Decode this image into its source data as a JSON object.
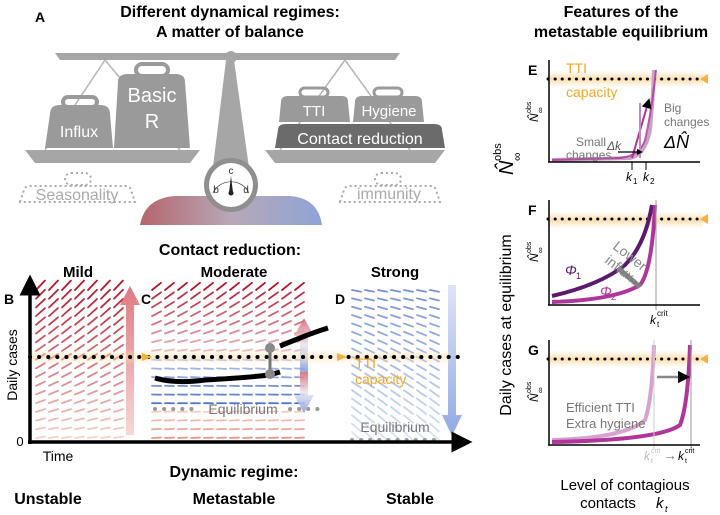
{
  "panel_a": {
    "letter": "A",
    "title_line1": "Different dynamical regimes:",
    "title_line2": "A matter of balance",
    "weights_left": {
      "influx": "Influx",
      "basic_r_line1": "Basic",
      "basic_r_line2": "R"
    },
    "weights_right": {
      "tti": "TTI",
      "hygiene": "Hygiene",
      "contact_reduction": "Contact reduction"
    },
    "dotted_left": "Seasonality",
    "dotted_right": "immunity",
    "gauge": {
      "b": "b",
      "c": "c",
      "d": "d"
    }
  },
  "middle": {
    "title": "Contact reduction:",
    "footer_title": "Dynamic regime:",
    "panels": [
      {
        "letter": "B",
        "label": "Mild",
        "regime": "Unstable"
      },
      {
        "letter": "C",
        "label": "Moderate",
        "regime": "Metastable"
      },
      {
        "letter": "D",
        "label": "Strong",
        "regime": "Stable"
      }
    ],
    "ylabel": "Daily cases",
    "xlabel": "Time",
    "zero": "0",
    "tti_line1": "TTI",
    "tti_line2": "capacity",
    "equilibrium": "Equilibrium"
  },
  "right": {
    "title_line1": "Features of the",
    "title_line2": "metastable equilibrium",
    "ylabel": "Daily cases at equilibrium",
    "y_math": "N̂",
    "y_sup": "obs",
    "y_sub": "∞",
    "xlabel_line1": "Level of contagious",
    "xlabel_line2": "contacts",
    "x_math": "k",
    "x_sub": "t",
    "panel_e": {
      "letter": "E",
      "tti_line1": "TTI",
      "tti_line2": "capacity",
      "small_changes_line1": "Small",
      "small_changes_line2": "changes",
      "delta_k": "Δk",
      "big_changes_line1": "Big",
      "big_changes_line2": "changes",
      "delta_n": "ΔN̂",
      "k1": "k",
      "k1_sub": "1",
      "k2": "k",
      "k2_sub": "2"
    },
    "panel_f": {
      "letter": "F",
      "phi1": "Φ",
      "phi1_sub": "1",
      "phi2": "Φ",
      "phi2_sub": "2",
      "lower_influx_line1": "Lower",
      "lower_influx_line2": "influx",
      "kcrit": "k",
      "kcrit_sub": "t",
      "kcrit_sup": "crit"
    },
    "panel_g": {
      "letter": "G",
      "efficient_tti": "Efficient TTI",
      "extra_hygiene": "Extra hygiene",
      "kcrit_prime": "k",
      "kcrit_prime_sub": "t",
      "kcrit_prime_sup": "crit",
      "kcrit": "k",
      "kcrit_sub": "t",
      "kcrit_sup": "crit",
      "arrow": "→"
    }
  },
  "colors": {
    "scale_gray": "#a6a6a6",
    "weight_gray": "#9a9a9a",
    "dark_weight": "#6b6b6b",
    "unstable_red": "#b2182b",
    "stable_blue": "#4a6fc9",
    "tti_orange": "#f5b041",
    "purple_dark": "#5b1a6e",
    "magenta": "#b0359b",
    "light_purple": "#d6a3d0"
  }
}
